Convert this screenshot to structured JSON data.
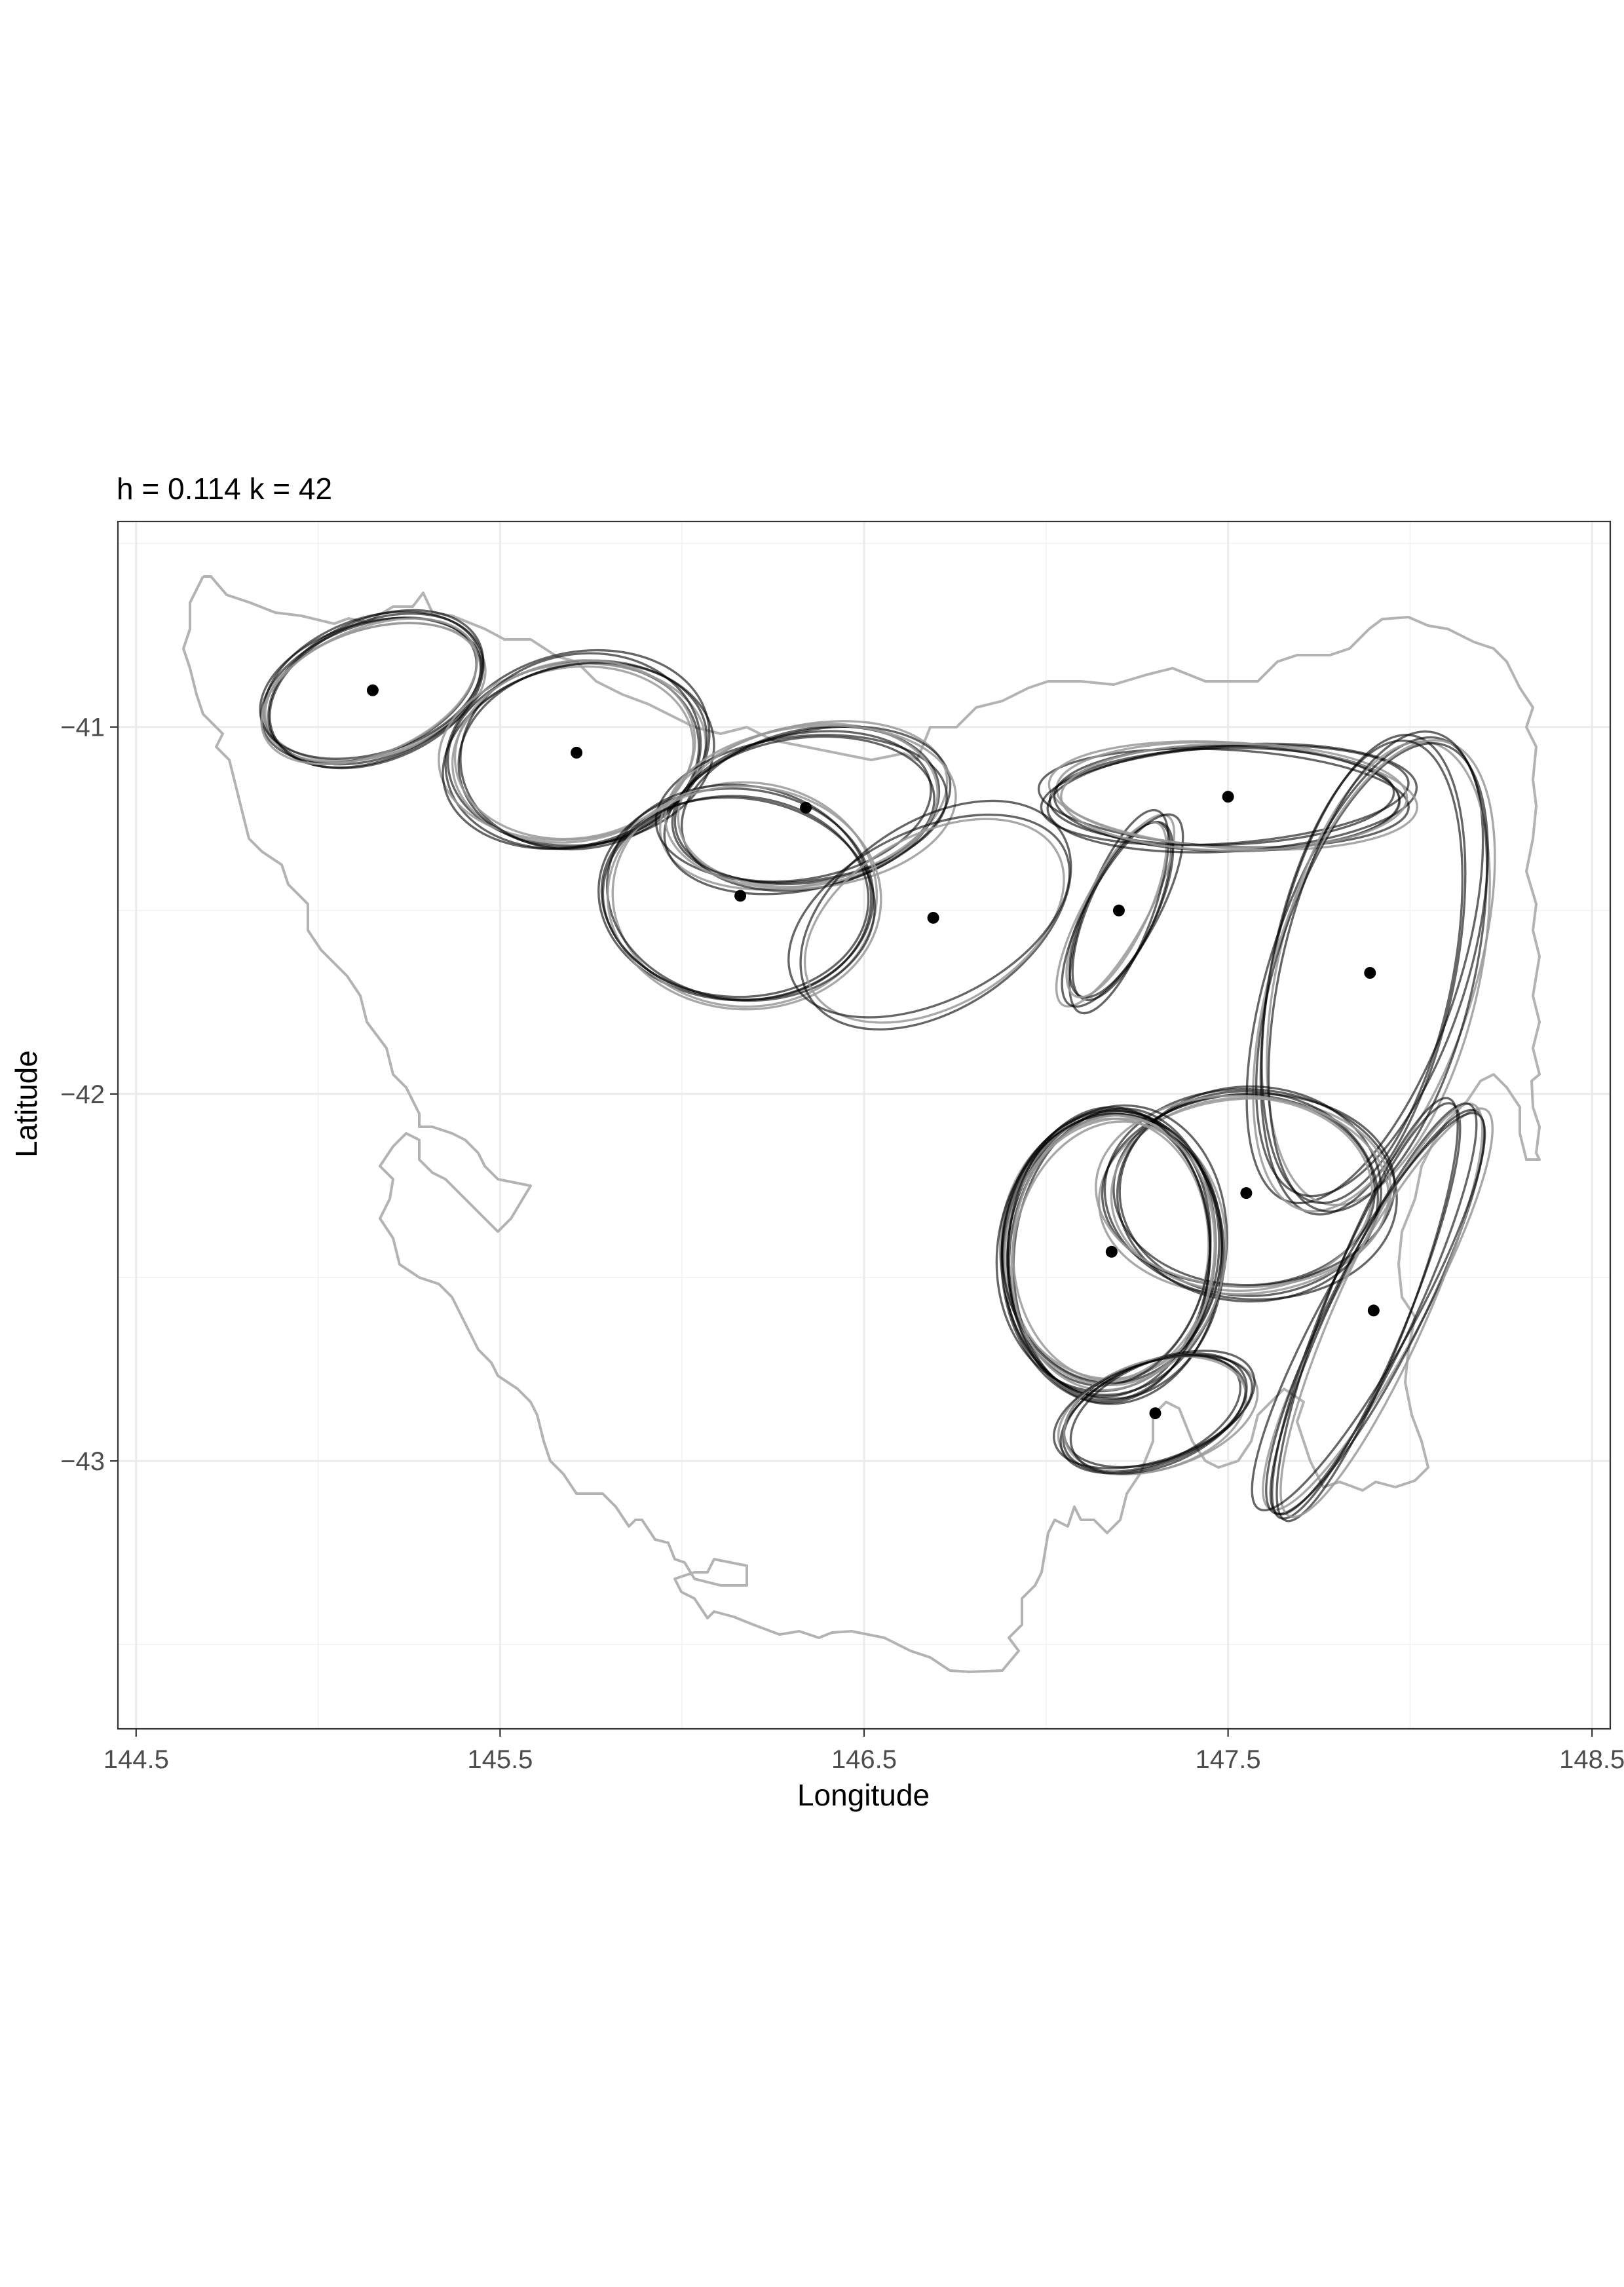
{
  "chart_data": {
    "type": "scatter",
    "title": "h = 0.114 k = 42",
    "xlabel": "Longitude",
    "ylabel": "Latitude",
    "xlim": [
      144.45,
      148.55
    ],
    "ylim": [
      -43.73,
      -40.44
    ],
    "x_ticks": [
      144.5,
      145.5,
      146.5,
      147.5,
      148.5
    ],
    "x_tick_labels": [
      "144.5",
      "145.5",
      "146.5",
      "147.5",
      "148.5"
    ],
    "y_ticks": [
      -41,
      -42,
      -43
    ],
    "y_tick_labels": [
      "−41",
      "−42",
      "−43"
    ],
    "grid": true,
    "theme": "black-and-white with light grey grid",
    "colors": {
      "points": "#000000",
      "coastline": "#b3b3b3",
      "ellipse_dark": "#000000",
      "ellipse_light": "#999999",
      "grid": "#ebebeb",
      "border": "#333333"
    },
    "centroids": [
      {
        "lon": 145.15,
        "lat": -40.9
      },
      {
        "lon": 145.71,
        "lat": -41.07
      },
      {
        "lon": 146.34,
        "lat": -41.22
      },
      {
        "lon": 146.16,
        "lat": -41.46
      },
      {
        "lon": 146.69,
        "lat": -41.52
      },
      {
        "lon": 147.2,
        "lat": -41.5
      },
      {
        "lon": 147.5,
        "lat": -41.19
      },
      {
        "lon": 147.89,
        "lat": -41.67
      },
      {
        "lon": 147.55,
        "lat": -42.27
      },
      {
        "lon": 147.18,
        "lat": -42.43
      },
      {
        "lon": 147.9,
        "lat": -42.59
      },
      {
        "lon": 147.3,
        "lat": -42.87
      }
    ],
    "ellipse_groups": [
      {
        "lon": 145.15,
        "lat": -40.9,
        "rx": 0.31,
        "ry": 0.18,
        "angle_deg": -20,
        "count": 8
      },
      {
        "lon": 145.71,
        "lat": -41.07,
        "rx": 0.35,
        "ry": 0.25,
        "angle_deg": -10,
        "count": 8
      },
      {
        "lon": 146.34,
        "lat": -41.22,
        "rx": 0.38,
        "ry": 0.21,
        "angle_deg": -10,
        "count": 8
      },
      {
        "lon": 146.16,
        "lat": -41.46,
        "rx": 0.37,
        "ry": 0.29,
        "angle_deg": 5,
        "count": 6
      },
      {
        "lon": 146.69,
        "lat": -41.52,
        "rx": 0.4,
        "ry": 0.24,
        "angle_deg": -30,
        "count": 3
      },
      {
        "lon": 147.2,
        "lat": -41.5,
        "rx": 0.28,
        "ry": 0.09,
        "angle_deg": -65,
        "count": 6
      },
      {
        "lon": 147.5,
        "lat": -41.19,
        "rx": 0.49,
        "ry": 0.14,
        "angle_deg": 0,
        "count": 8
      },
      {
        "lon": 147.89,
        "lat": -41.67,
        "rx": 0.66,
        "ry": 0.26,
        "angle_deg": -75,
        "count": 7
      },
      {
        "lon": 147.55,
        "lat": -42.27,
        "rx": 0.38,
        "ry": 0.27,
        "angle_deg": 0,
        "count": 8
      },
      {
        "lon": 147.18,
        "lat": -42.43,
        "rx": 0.29,
        "ry": 0.38,
        "angle_deg": 5,
        "count": 14
      },
      {
        "lon": 147.9,
        "lat": -42.59,
        "rx": 0.62,
        "ry": 0.12,
        "angle_deg": -65,
        "count": 7
      },
      {
        "lon": 147.3,
        "lat": -42.87,
        "rx": 0.27,
        "ry": 0.14,
        "angle_deg": -20,
        "count": 7
      }
    ]
  }
}
